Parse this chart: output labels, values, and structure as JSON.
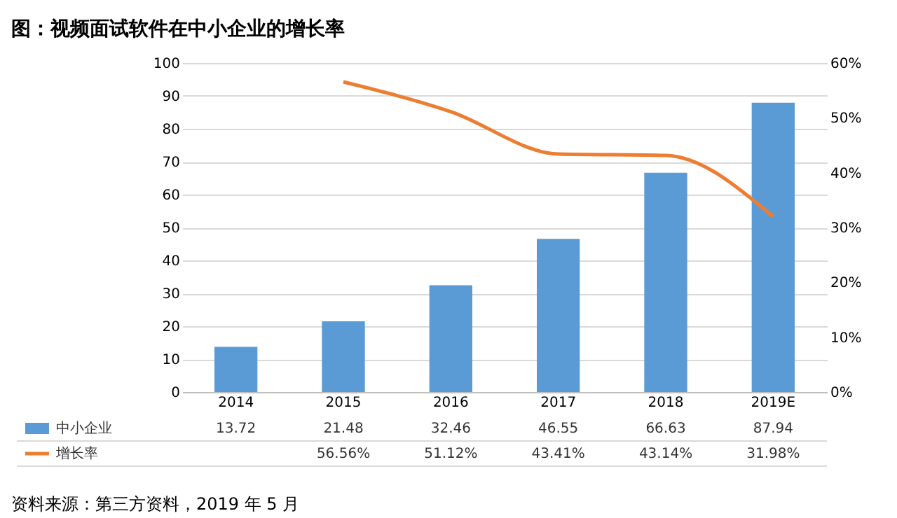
{
  "chart_data": {
    "type": "bar",
    "title": "图：视频面试软件在中小企业的增长率",
    "categories": [
      "2014",
      "2015",
      "2016",
      "2017",
      "2018",
      "2019E"
    ],
    "series": [
      {
        "name": "中小企业",
        "color": "#5b9bd5",
        "values": [
          13.72,
          21.48,
          32.46,
          46.55,
          66.63,
          87.94
        ],
        "value_labels": [
          "13.72",
          "21.48",
          "32.46",
          "46.55",
          "66.63",
          "87.94"
        ]
      },
      {
        "name": "增长率",
        "type": "line",
        "axis": "y2",
        "color": "#ed7d31",
        "values": [
          null,
          56.56,
          51.12,
          43.41,
          43.14,
          31.98
        ],
        "value_labels": [
          null,
          "56.56%",
          "51.12%",
          "43.41%",
          "43.14%",
          "31.98%"
        ]
      }
    ],
    "ylim": [
      0,
      100
    ],
    "yticks": [
      0,
      10,
      20,
      30,
      40,
      50,
      60,
      70,
      80,
      90,
      100
    ],
    "y2lim": [
      0,
      60
    ],
    "y2ticks": [
      {
        "value": 0,
        "label": "0%"
      },
      {
        "value": 10,
        "label": "10%"
      },
      {
        "value": 20,
        "label": "20%"
      },
      {
        "value": 30,
        "label": "30%"
      },
      {
        "value": 40,
        "label": "40%"
      },
      {
        "value": 50,
        "label": "50%"
      },
      {
        "value": 60,
        "label": "60%"
      }
    ],
    "grid": "y",
    "legend": "bottom",
    "annotations": [
      "资料来源：第三方资料，2019 年 5 月"
    ]
  }
}
